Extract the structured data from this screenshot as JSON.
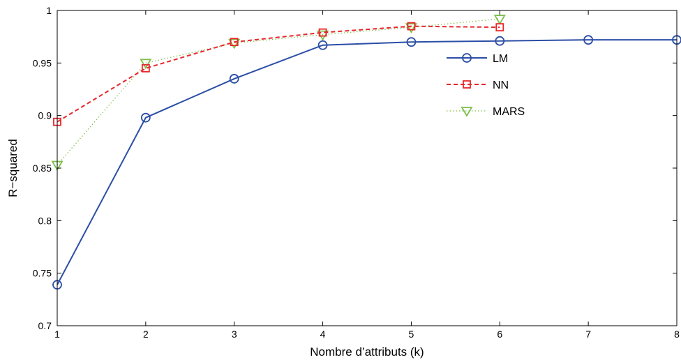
{
  "chart_data": {
    "type": "line",
    "title": "",
    "xlabel": "Nombre d’attributs (k)",
    "ylabel": "R−squared",
    "xlim": [
      1,
      8
    ],
    "ylim": [
      0.7,
      1
    ],
    "xticks": [
      1,
      2,
      3,
      4,
      5,
      6,
      7,
      8
    ],
    "xtick_labels": [
      "1",
      "2",
      "3",
      "4",
      "5",
      "6",
      "7",
      "8"
    ],
    "yticks": [
      0.7,
      0.75,
      0.8,
      0.85,
      0.9,
      0.95,
      1
    ],
    "ytick_labels": [
      "0.7",
      "0.75",
      "0.8",
      "0.85",
      "0.9",
      "0.95",
      "1"
    ],
    "grid": false,
    "legend_position": "upper-right inside plot",
    "series": [
      {
        "name": "LM",
        "color": "#2b4ea6",
        "line_style": "solid",
        "marker": "circle",
        "x": [
          1,
          2,
          3,
          4,
          5,
          6,
          7,
          8
        ],
        "y": [
          0.739,
          0.898,
          0.935,
          0.967,
          0.97,
          0.971,
          0.972,
          0.972
        ]
      },
      {
        "name": "NN",
        "color": "#e8262a",
        "line_style": "dashed",
        "marker": "square",
        "x": [
          1,
          2,
          3,
          4,
          5,
          6
        ],
        "y": [
          0.894,
          0.945,
          0.97,
          0.979,
          0.985,
          0.984
        ]
      },
      {
        "name": "MARS",
        "color": "#7dbf4a",
        "line_style": "dotted",
        "marker": "triangle-down",
        "x": [
          1,
          2,
          3,
          4,
          5,
          6
        ],
        "y": [
          0.853,
          0.95,
          0.969,
          0.977,
          0.984,
          0.992
        ]
      }
    ]
  }
}
